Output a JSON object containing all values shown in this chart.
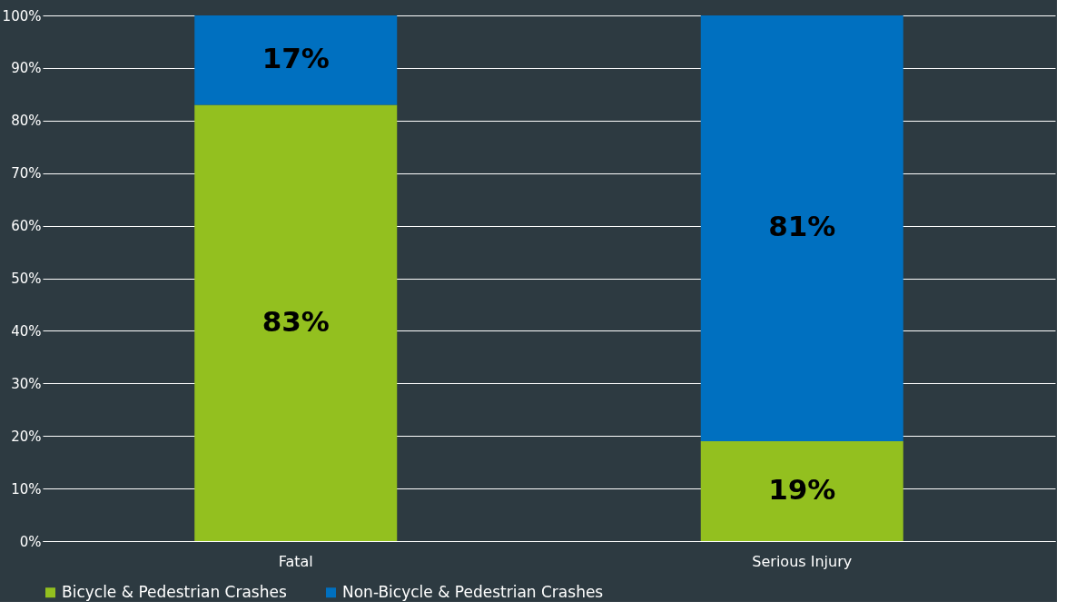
{
  "chart_data": {
    "type": "bar",
    "stacked": true,
    "categories": [
      "Fatal",
      "Serious Injury"
    ],
    "series": [
      {
        "name": "Bicycle & Pedestrian Crashes",
        "color": "#93c01f",
        "values": [
          83,
          19
        ]
      },
      {
        "name": "Non-Bicycle & Pedestrian Crashes",
        "color": "#0070c0",
        "values": [
          17,
          81
        ]
      }
    ],
    "ylim": [
      0,
      100
    ],
    "yticks": [
      {
        "value": 0,
        "label": "0%"
      },
      {
        "value": 10,
        "label": "10%"
      },
      {
        "value": 20,
        "label": "20%"
      },
      {
        "value": 30,
        "label": "30%"
      },
      {
        "value": 40,
        "label": "40%"
      },
      {
        "value": 50,
        "label": "50%"
      },
      {
        "value": 60,
        "label": "60%"
      },
      {
        "value": 70,
        "label": "70%"
      },
      {
        "value": 80,
        "label": "80%"
      },
      {
        "value": 90,
        "label": "90%"
      },
      {
        "value": 100,
        "label": "100%"
      }
    ],
    "value_labels": [
      [
        "83%",
        "19%"
      ],
      [
        "17%",
        "81%"
      ]
    ],
    "grid": "y",
    "legend": "bottom"
  }
}
